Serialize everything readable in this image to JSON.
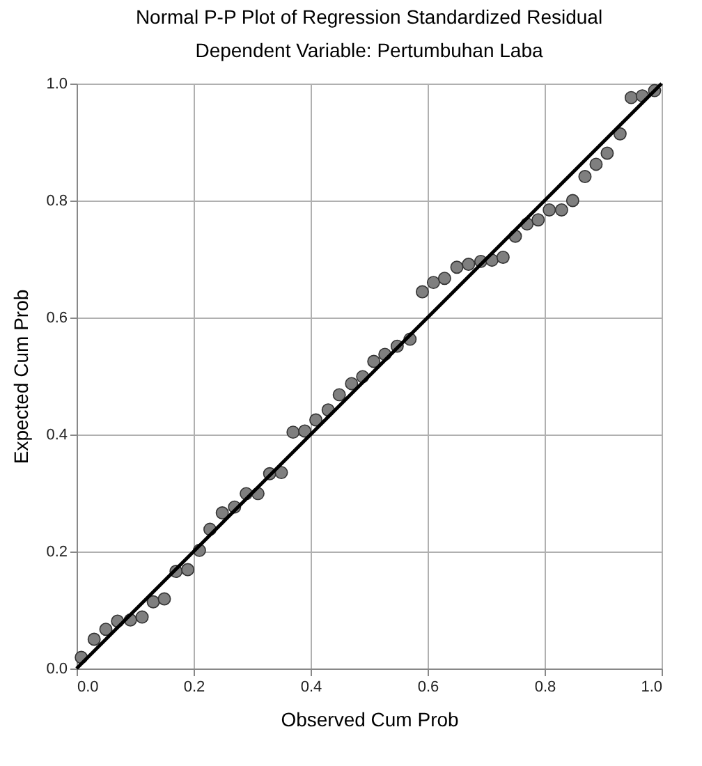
{
  "chart_data": {
    "type": "scatter",
    "title": "Normal P-P Plot of Regression Standardized Residual",
    "subtitle": "Dependent Variable: Pertumbuhan Laba",
    "xlabel": "Observed Cum Prob",
    "ylabel": "Expected Cum Prob",
    "xlim": [
      0,
      1
    ],
    "ylim": [
      0,
      1
    ],
    "xticks": [
      {
        "value": 0,
        "label": "0.0"
      },
      {
        "value": 0.2,
        "label": "0.2"
      },
      {
        "value": 0.4,
        "label": "0.4"
      },
      {
        "value": 0.6,
        "label": "0.6"
      },
      {
        "value": 0.8,
        "label": "0.8"
      },
      {
        "value": 1,
        "label": "1.0"
      }
    ],
    "yticks": [
      {
        "value": 0,
        "label": "0.0"
      },
      {
        "value": 0.2,
        "label": "0.2"
      },
      {
        "value": 0.4,
        "label": "0.4"
      },
      {
        "value": 0.6,
        "label": "0.6"
      },
      {
        "value": 0.8,
        "label": "0.8"
      },
      {
        "value": 1,
        "label": "1.0"
      }
    ],
    "grid": true,
    "series": [
      {
        "marker": "circle",
        "color": "#7f7f7f",
        "x": [
          0.008,
          0.03,
          0.05,
          0.07,
          0.092,
          0.112,
          0.131,
          0.15,
          0.17,
          0.19,
          0.21,
          0.228,
          0.249,
          0.27,
          0.29,
          0.31,
          0.33,
          0.35,
          0.37,
          0.39,
          0.409,
          0.43,
          0.449,
          0.47,
          0.489,
          0.508,
          0.527,
          0.548,
          0.57,
          0.591,
          0.61,
          0.629,
          0.65,
          0.67,
          0.691,
          0.71,
          0.729,
          0.75,
          0.77,
          0.789,
          0.808,
          0.829,
          0.848,
          0.869,
          0.888,
          0.907,
          0.929,
          0.948,
          0.967,
          0.988
        ],
        "values": [
          0.019,
          0.05,
          0.067,
          0.081,
          0.083,
          0.088,
          0.114,
          0.119,
          0.166,
          0.169,
          0.202,
          0.238,
          0.266,
          0.276,
          0.299,
          0.299,
          0.333,
          0.335,
          0.404,
          0.406,
          0.425,
          0.442,
          0.468,
          0.487,
          0.499,
          0.525,
          0.537,
          0.551,
          0.563,
          0.644,
          0.66,
          0.667,
          0.686,
          0.691,
          0.696,
          0.698,
          0.703,
          0.739,
          0.76,
          0.767,
          0.784,
          0.784,
          0.8,
          0.841,
          0.862,
          0.881,
          0.914,
          0.976,
          0.979,
          0.988
        ]
      },
      {
        "type": "line",
        "color": "#000000",
        "x": [
          0,
          1
        ],
        "values": [
          0,
          1
        ]
      }
    ]
  }
}
